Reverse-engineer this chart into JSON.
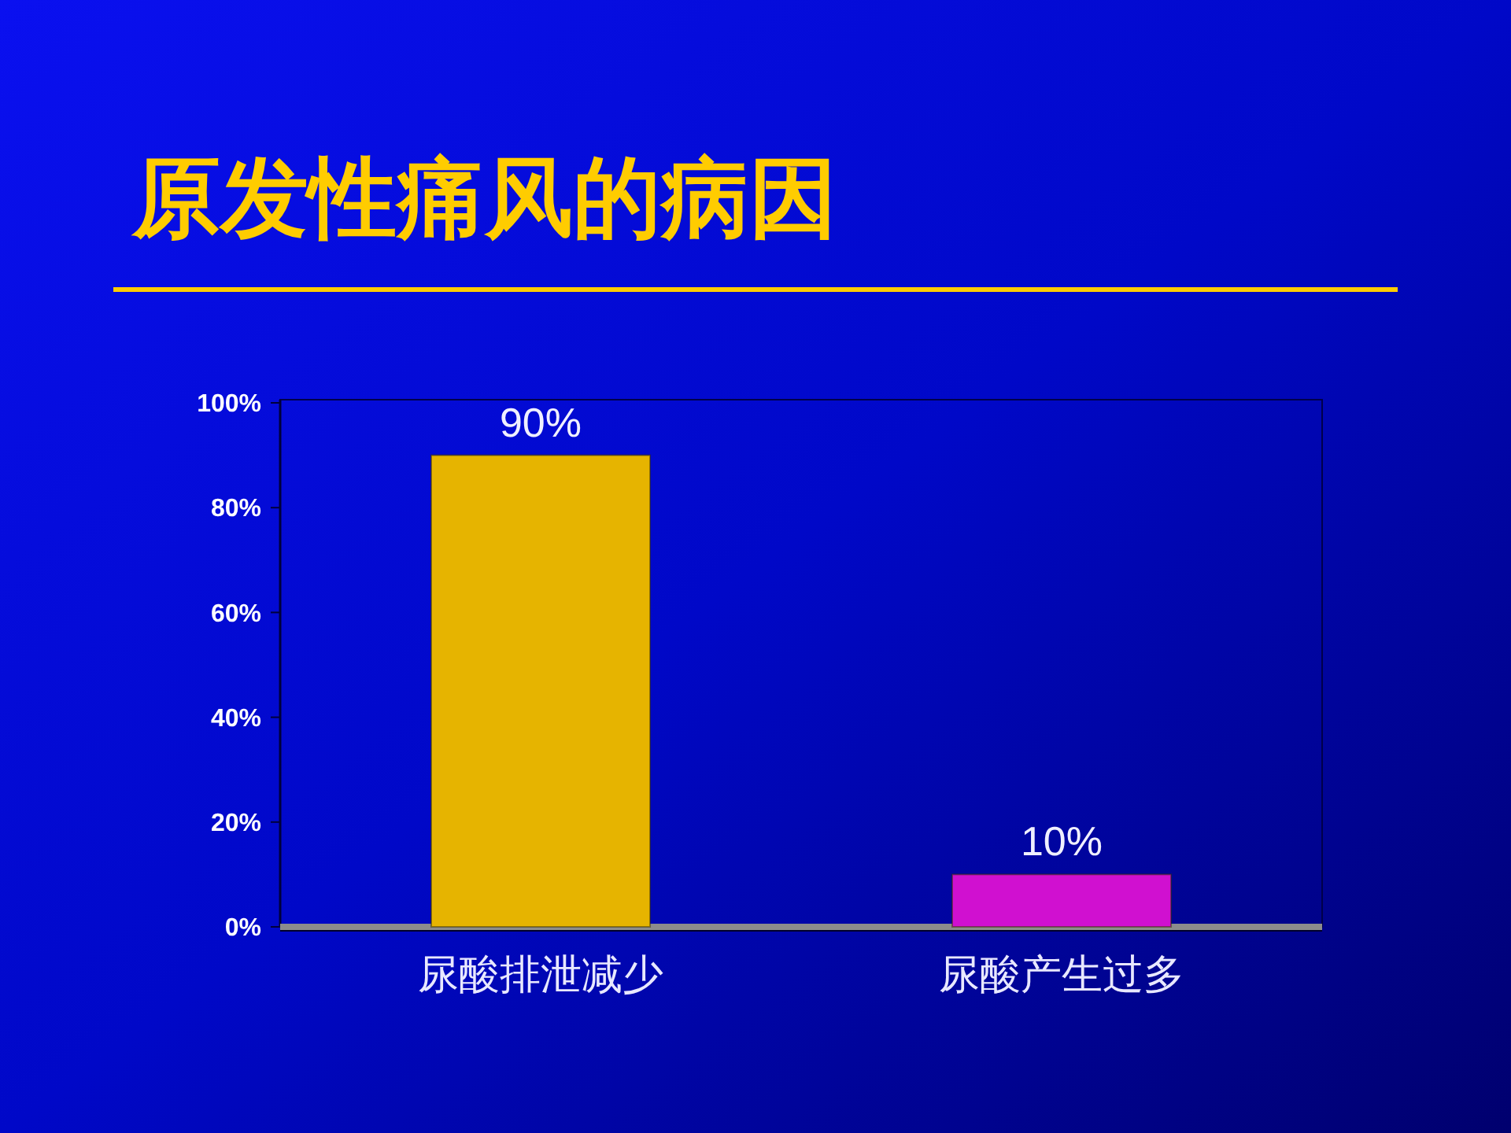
{
  "chart_data": {
    "type": "bar",
    "title": "原发性痛风的病因",
    "categories": [
      "尿酸排泄减少",
      "尿酸产生过多"
    ],
    "values": [
      90,
      10
    ],
    "colors": [
      "#e6b400",
      "#d010d0"
    ],
    "value_labels": [
      "90%",
      "10%"
    ],
    "ylim": [
      0,
      100
    ],
    "yticks": [
      {
        "value": 0,
        "label": "0%"
      },
      {
        "value": 20,
        "label": "20%"
      },
      {
        "value": 40,
        "label": "40%"
      },
      {
        "value": 60,
        "label": "60%"
      },
      {
        "value": 80,
        "label": "80%"
      },
      {
        "value": 100,
        "label": "100%"
      }
    ]
  }
}
